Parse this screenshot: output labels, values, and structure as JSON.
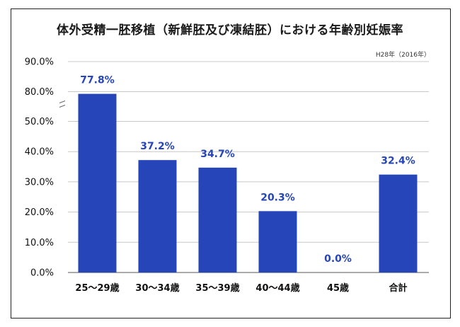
{
  "title": "体外受精一胚移植（新鮮胚及び凍結胚）における年齢別妊娠率",
  "note": "H28年（2016年）",
  "chart_data": {
    "type": "bar",
    "title": "体外受精一胚移植（新鮮胚及び凍結胚）における年齢別妊娠率",
    "categories": [
      "25～29歳",
      "30～34歳",
      "35～39歳",
      "40～44歳",
      "45歳",
      "合計"
    ],
    "values": [
      77.8,
      37.2,
      34.7,
      20.3,
      0.0,
      32.4
    ],
    "data_labels": [
      "77.8%",
      "37.2%",
      "34.7%",
      "20.3%",
      "0.0%",
      "32.4%"
    ],
    "yticks": [
      "0.0%",
      "10.0%",
      "20.0%",
      "30.0%",
      "40.0%",
      "50.0%",
      "80.0%",
      "90.0%"
    ],
    "ylim": [
      0,
      90
    ],
    "axis_break": [
      50,
      80
    ],
    "grid": true,
    "bar_color": "#2645b8"
  }
}
